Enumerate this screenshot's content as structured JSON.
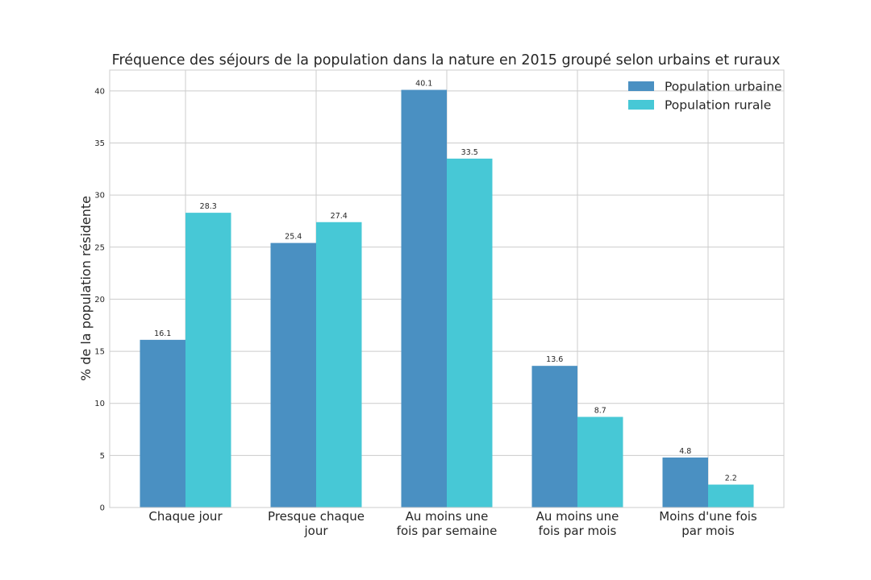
{
  "chart_data": {
    "type": "bar",
    "title": "Fréquence des séjours de la population dans la nature en 2015 groupé selon urbains et ruraux",
    "xlabel": "",
    "ylabel": "% de la population résidente",
    "ylim": [
      0,
      42
    ],
    "yticks": [
      0,
      5,
      10,
      15,
      20,
      25,
      30,
      35,
      40
    ],
    "grid": true,
    "legend_position": "top-right",
    "categories": [
      [
        "Chaque jour"
      ],
      [
        "Presque chaque",
        "jour"
      ],
      [
        "Au moins une",
        "fois par semaine"
      ],
      [
        "Au moins une",
        "fois par mois"
      ],
      [
        "Moins d'une fois",
        "par mois"
      ]
    ],
    "series": [
      {
        "name": "Population urbaine",
        "color": "#4a90c2",
        "values": [
          16.1,
          25.4,
          40.1,
          13.6,
          4.8
        ]
      },
      {
        "name": "Population rurale",
        "color": "#47c8d6",
        "values": [
          28.3,
          27.4,
          33.5,
          8.7,
          2.2
        ]
      }
    ]
  }
}
